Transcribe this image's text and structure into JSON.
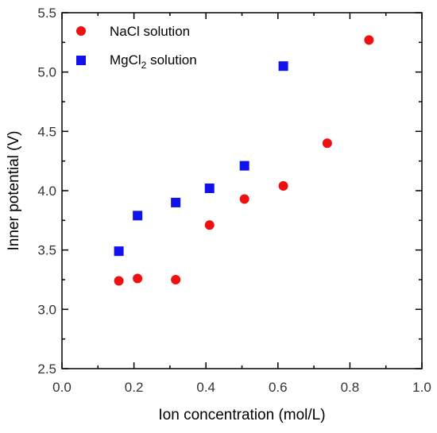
{
  "chart_data": {
    "type": "scatter",
    "xlabel": "Ion concentration (mol/L)",
    "ylabel": "Inner potential (V)",
    "xlim": [
      0.0,
      1.0
    ],
    "ylim": [
      2.5,
      5.5
    ],
    "xticks": [
      "0.0",
      "0.2",
      "0.4",
      "0.6",
      "0.8",
      "1.0"
    ],
    "yticks": [
      "2.5",
      "3.0",
      "3.5",
      "4.0",
      "4.5",
      "5.0",
      "5.5"
    ],
    "grid": false,
    "legend_position": "top-left",
    "series": [
      {
        "name": "NaCl solution",
        "marker": "circle",
        "color": "#ee1111",
        "x": [
          0.158,
          0.21,
          0.316,
          0.41,
          0.507,
          0.615,
          0.737,
          0.853
        ],
        "y": [
          3.24,
          3.26,
          3.25,
          3.71,
          3.93,
          4.04,
          4.4,
          5.27
        ]
      },
      {
        "name": "MgCl2 solution",
        "name_parts": {
          "base": "MgCl",
          "sub": "2",
          "tail": " solution"
        },
        "marker": "square",
        "color": "#1111ee",
        "x": [
          0.158,
          0.21,
          0.316,
          0.41,
          0.507,
          0.615
        ],
        "y": [
          3.49,
          3.79,
          3.9,
          4.02,
          4.21,
          5.05
        ]
      }
    ]
  }
}
